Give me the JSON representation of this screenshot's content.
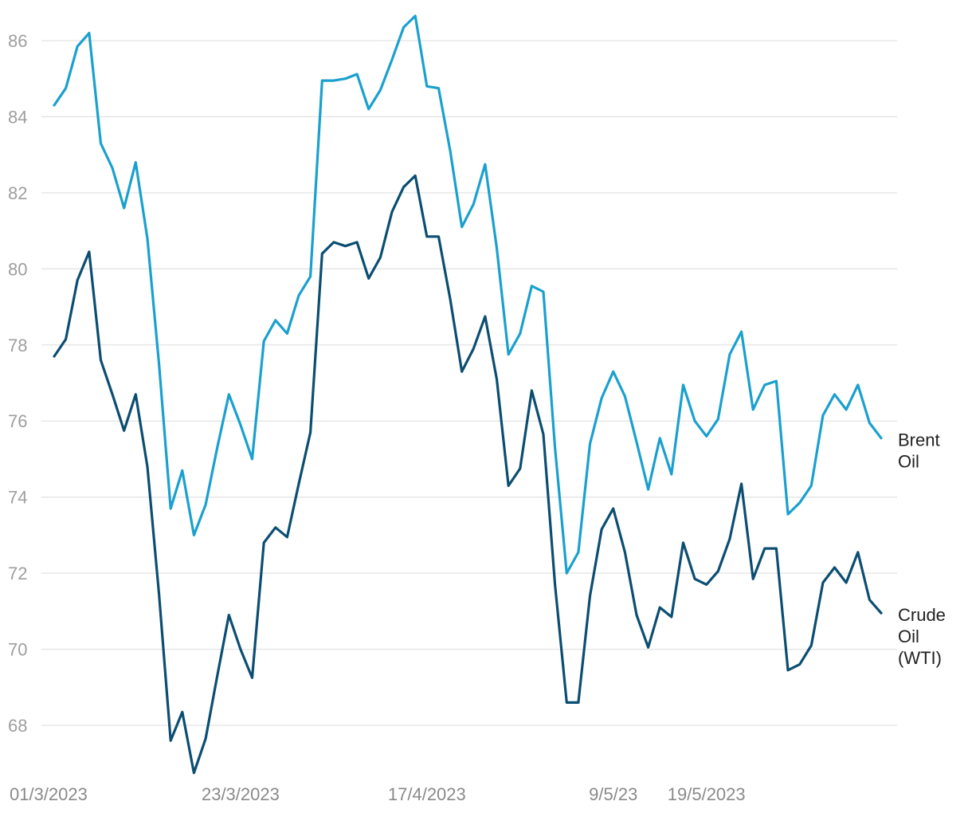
{
  "chart_data": {
    "type": "line",
    "title": "",
    "xlabel": "",
    "ylabel": "",
    "ylim": [
      66.8,
      87
    ],
    "yticks": [
      68,
      70,
      72,
      74,
      76,
      78,
      80,
      82,
      84,
      86
    ],
    "grid": true,
    "legend": "right, at line ends",
    "x_tick_labels": [
      {
        "index": 0,
        "label": "01/3/2023"
      },
      {
        "index": 16,
        "label": "23/3/2023"
      },
      {
        "index": 32,
        "label": "17/4/2023"
      },
      {
        "index": 48,
        "label": "9/5/23"
      },
      {
        "index": 56,
        "label": "19/5/2023"
      }
    ],
    "series": [
      {
        "name": "Brent Oil",
        "label_lines": [
          "Brent",
          "Oil"
        ],
        "color": "#1aa0cf",
        "values": [
          84.3,
          84.75,
          85.85,
          86.2,
          83.3,
          82.65,
          81.6,
          82.8,
          80.8,
          77.5,
          73.7,
          74.7,
          73.0,
          73.8,
          75.3,
          76.7,
          75.9,
          75.0,
          78.1,
          78.65,
          78.3,
          79.3,
          79.8,
          84.95,
          84.95,
          85.0,
          85.12,
          84.2,
          84.7,
          85.5,
          86.35,
          86.65,
          84.8,
          84.75,
          83.1,
          81.1,
          81.7,
          82.75,
          80.55,
          77.75,
          78.3,
          79.55,
          79.4,
          75.3,
          72.0,
          72.55,
          75.4,
          76.6,
          77.3,
          76.65,
          75.45,
          74.2,
          75.55,
          74.6,
          76.95,
          76.0,
          75.6,
          76.05,
          77.75,
          78.35,
          76.3,
          76.95,
          77.05,
          73.55,
          73.85,
          74.3,
          76.15,
          76.7,
          76.3,
          76.95,
          75.95,
          75.55
        ]
      },
      {
        "name": "Crude Oil (WTI)",
        "label_lines": [
          "Crude",
          "Oil",
          "(WTI)"
        ],
        "color": "#0b4e72",
        "values": [
          77.7,
          78.15,
          79.7,
          80.45,
          77.6,
          76.7,
          75.75,
          76.7,
          74.8,
          71.45,
          67.6,
          68.35,
          66.75,
          67.65,
          69.3,
          70.9,
          70.0,
          69.25,
          72.8,
          73.2,
          72.95,
          74.35,
          75.7,
          80.4,
          80.7,
          80.6,
          80.7,
          79.75,
          80.3,
          81.5,
          82.15,
          82.45,
          80.85,
          80.85,
          79.2,
          77.3,
          77.9,
          78.75,
          77.1,
          74.3,
          74.75,
          76.8,
          75.65,
          71.7,
          68.6,
          68.6,
          71.4,
          73.15,
          73.7,
          72.55,
          70.9,
          70.05,
          71.1,
          70.85,
          72.8,
          71.85,
          71.7,
          72.05,
          72.9,
          74.35,
          71.85,
          72.65,
          72.65,
          69.45,
          69.6,
          70.1,
          71.75,
          72.15,
          71.75,
          72.55,
          71.3,
          70.95
        ]
      }
    ]
  }
}
